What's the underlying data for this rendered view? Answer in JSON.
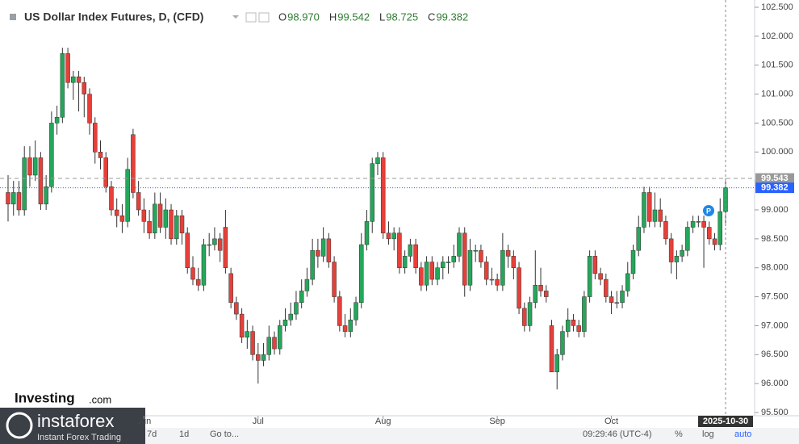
{
  "chart_data": {
    "type": "candlestick",
    "title": "US Dollar Index Futures, D, (CFD)",
    "ohlc_header": [
      {
        "label": "O",
        "value": "98.970"
      },
      {
        "label": "H",
        "value": "99.542"
      },
      {
        "label": "L",
        "value": "98.725"
      },
      {
        "label": "C",
        "value": "99.382"
      }
    ],
    "up_color": "#26a65b",
    "down_color": "#e5403a",
    "ylim": [
      95.5,
      102.5
    ],
    "yticks": [
      {
        "value": 95.5,
        "label": "95.500"
      },
      {
        "value": 96,
        "label": "96.000"
      },
      {
        "value": 96.5,
        "label": "96.500"
      },
      {
        "value": 97,
        "label": "97.000"
      },
      {
        "value": 97.5,
        "label": "97.500"
      },
      {
        "value": 98,
        "label": "98.000"
      },
      {
        "value": 98.5,
        "label": "98.500"
      },
      {
        "value": 99,
        "label": "99.000"
      },
      {
        "value": 99.5,
        "label": "99.500"
      },
      {
        "value": 100,
        "label": "100.000"
      },
      {
        "value": 100.5,
        "label": "100.500"
      },
      {
        "value": 101,
        "label": "101.000"
      },
      {
        "value": 101.5,
        "label": "101.500"
      },
      {
        "value": 102,
        "label": "102.000"
      },
      {
        "value": 102.5,
        "label": "102.500"
      }
    ],
    "xticks": [
      {
        "value": 25,
        "label": "Jun"
      },
      {
        "value": 46,
        "label": "Jul"
      },
      {
        "value": 69,
        "label": "Aug"
      },
      {
        "value": 90,
        "label": "Sep"
      },
      {
        "value": 111,
        "label": "Oct"
      }
    ],
    "cursor_date": {
      "value": 132,
      "label": "2025-10-30"
    },
    "price_lines": [
      {
        "value": 99.543,
        "label": "99.543",
        "color": "#999999"
      },
      {
        "value": 99.382,
        "label": "99.382",
        "color": "#2962ff"
      }
    ],
    "candles": [
      [
        99.3,
        99.6,
        98.8,
        99.1
      ],
      [
        99.1,
        99.5,
        98.9,
        99.3
      ],
      [
        99.3,
        99.5,
        98.9,
        99.0
      ],
      [
        99.0,
        100.1,
        98.9,
        99.9
      ],
      [
        99.9,
        100.1,
        99.4,
        99.6
      ],
      [
        99.6,
        100.2,
        99.5,
        99.9
      ],
      [
        99.9,
        100.0,
        99.0,
        99.1
      ],
      [
        99.1,
        99.6,
        99.0,
        99.4
      ],
      [
        99.4,
        100.7,
        99.3,
        100.5
      ],
      [
        100.5,
        100.8,
        100.3,
        100.6
      ],
      [
        100.6,
        101.8,
        100.5,
        101.7
      ],
      [
        101.7,
        101.8,
        101.1,
        101.2
      ],
      [
        101.2,
        101.4,
        100.9,
        101.3
      ],
      [
        101.3,
        101.4,
        100.7,
        101.2
      ],
      [
        101.2,
        101.3,
        100.6,
        101.0
      ],
      [
        101.0,
        101.1,
        100.3,
        100.5
      ],
      [
        100.5,
        100.6,
        99.8,
        100.0
      ],
      [
        100.0,
        100.2,
        99.7,
        99.9
      ],
      [
        99.9,
        100.0,
        99.3,
        99.4
      ],
      [
        99.4,
        99.5,
        98.9,
        99.0
      ],
      [
        99.0,
        99.2,
        98.7,
        98.9
      ],
      [
        98.9,
        99.1,
        98.6,
        98.8
      ],
      [
        98.8,
        99.9,
        98.7,
        99.7
      ],
      [
        100.3,
        100.4,
        99.2,
        99.3
      ],
      [
        99.3,
        99.5,
        98.9,
        99.0
      ],
      [
        99.0,
        99.2,
        98.6,
        98.8
      ],
      [
        98.8,
        99.0,
        98.5,
        98.6
      ],
      [
        98.6,
        99.3,
        98.5,
        99.1
      ],
      [
        99.1,
        99.3,
        98.6,
        98.7
      ],
      [
        98.7,
        99.2,
        98.5,
        99.0
      ],
      [
        99.0,
        99.1,
        98.4,
        98.5
      ],
      [
        98.5,
        99.0,
        98.4,
        98.9
      ],
      [
        98.9,
        99.0,
        98.4,
        98.6
      ],
      [
        98.6,
        98.7,
        97.9,
        98.0
      ],
      [
        98.0,
        98.2,
        97.7,
        97.8
      ],
      [
        97.8,
        98.0,
        97.6,
        97.7
      ],
      [
        97.7,
        98.5,
        97.6,
        98.4
      ],
      [
        98.4,
        98.6,
        98.2,
        98.4
      ],
      [
        98.4,
        98.7,
        98.3,
        98.5
      ],
      [
        98.5,
        98.6,
        98.1,
        98.3
      ],
      [
        98.7,
        99.0,
        97.9,
        98.0
      ],
      [
        97.9,
        98.0,
        97.3,
        97.4
      ],
      [
        97.4,
        97.5,
        97.1,
        97.2
      ],
      [
        97.2,
        97.3,
        96.7,
        96.8
      ],
      [
        96.8,
        97.1,
        96.6,
        96.9
      ],
      [
        96.9,
        97.0,
        96.4,
        96.5
      ],
      [
        96.5,
        96.7,
        96.0,
        96.4
      ],
      [
        96.4,
        96.7,
        96.3,
        96.5
      ],
      [
        96.5,
        97.0,
        96.4,
        96.8
      ],
      [
        96.8,
        96.9,
        96.5,
        96.6
      ],
      [
        96.6,
        97.1,
        96.5,
        97.0
      ],
      [
        97.0,
        97.3,
        96.9,
        97.1
      ],
      [
        97.1,
        97.4,
        97.0,
        97.2
      ],
      [
        97.2,
        97.6,
        97.1,
        97.4
      ],
      [
        97.4,
        97.8,
        97.3,
        97.6
      ],
      [
        97.6,
        98.0,
        97.5,
        97.8
      ],
      [
        97.8,
        98.5,
        97.7,
        98.3
      ],
      [
        98.3,
        98.5,
        98.0,
        98.2
      ],
      [
        98.2,
        98.7,
        98.1,
        98.5
      ],
      [
        98.5,
        98.6,
        98.0,
        98.1
      ],
      [
        98.1,
        98.2,
        97.4,
        97.5
      ],
      [
        97.5,
        97.6,
        96.9,
        97.0
      ],
      [
        97.0,
        97.2,
        96.8,
        96.9
      ],
      [
        96.9,
        97.3,
        96.8,
        97.1
      ],
      [
        97.1,
        97.5,
        97.0,
        97.4
      ],
      [
        97.4,
        98.6,
        97.3,
        98.4
      ],
      [
        98.4,
        99.0,
        98.3,
        98.8
      ],
      [
        98.8,
        99.9,
        98.6,
        99.8
      ],
      [
        99.8,
        100.0,
        99.6,
        99.9
      ],
      [
        99.9,
        100.0,
        98.5,
        98.6
      ],
      [
        98.6,
        98.8,
        98.4,
        98.5
      ],
      [
        98.5,
        98.7,
        98.3,
        98.6
      ],
      [
        98.6,
        98.7,
        97.9,
        98.0
      ],
      [
        98.0,
        98.3,
        97.9,
        98.2
      ],
      [
        98.2,
        98.5,
        98.1,
        98.4
      ],
      [
        98.4,
        98.5,
        97.9,
        98.0
      ],
      [
        98.0,
        98.1,
        97.6,
        97.7
      ],
      [
        97.7,
        98.2,
        97.6,
        98.1
      ],
      [
        98.1,
        98.2,
        97.7,
        97.8
      ],
      [
        97.8,
        98.1,
        97.7,
        98.0
      ],
      [
        98.0,
        98.2,
        97.8,
        98.1
      ],
      [
        98.1,
        98.2,
        97.9,
        98.1
      ],
      [
        98.1,
        98.4,
        98.0,
        98.2
      ],
      [
        98.2,
        98.7,
        98.1,
        98.6
      ],
      [
        98.6,
        98.7,
        97.5,
        97.7
      ],
      [
        97.7,
        98.5,
        97.6,
        98.3
      ],
      [
        98.3,
        98.4,
        98.1,
        98.3
      ],
      [
        98.3,
        98.4,
        98.0,
        98.1
      ],
      [
        98.1,
        98.2,
        97.7,
        97.8
      ],
      [
        97.8,
        98.0,
        97.7,
        97.8
      ],
      [
        97.8,
        97.9,
        97.6,
        97.7
      ],
      [
        97.7,
        98.6,
        97.6,
        98.3
      ],
      [
        98.3,
        98.4,
        98.0,
        98.2
      ],
      [
        98.2,
        98.3,
        97.8,
        98.0
      ],
      [
        98.0,
        98.1,
        97.2,
        97.3
      ],
      [
        97.3,
        97.4,
        96.9,
        97.0
      ],
      [
        97.0,
        97.5,
        96.9,
        97.4
      ],
      [
        97.4,
        98.3,
        97.3,
        97.7
      ],
      [
        97.7,
        98.0,
        97.5,
        97.6
      ],
      [
        97.6,
        97.7,
        97.4,
        97.5
      ],
      [
        97.0,
        97.1,
        96.2,
        96.2
      ],
      [
        96.2,
        96.6,
        95.9,
        96.5
      ],
      [
        96.5,
        97.0,
        96.4,
        96.9
      ],
      [
        96.9,
        97.3,
        96.8,
        97.1
      ],
      [
        97.1,
        97.2,
        96.9,
        97.0
      ],
      [
        97.0,
        97.1,
        96.8,
        96.9
      ],
      [
        96.9,
        97.6,
        96.8,
        97.5
      ],
      [
        97.5,
        98.3,
        97.4,
        98.2
      ],
      [
        98.2,
        98.3,
        97.8,
        97.9
      ],
      [
        97.9,
        98.0,
        97.7,
        97.8
      ],
      [
        97.8,
        97.9,
        97.4,
        97.5
      ],
      [
        97.5,
        97.6,
        97.2,
        97.4
      ],
      [
        97.4,
        97.6,
        97.3,
        97.4
      ],
      [
        97.4,
        97.7,
        97.3,
        97.6
      ],
      [
        97.6,
        98.1,
        97.5,
        97.9
      ],
      [
        97.9,
        98.4,
        97.8,
        98.3
      ],
      [
        98.3,
        98.9,
        98.2,
        98.7
      ],
      [
        98.7,
        99.4,
        98.6,
        99.3
      ],
      [
        99.3,
        99.4,
        98.7,
        98.8
      ],
      [
        98.8,
        99.3,
        98.7,
        99.0
      ],
      [
        99.0,
        99.2,
        98.7,
        98.8
      ],
      [
        98.8,
        98.9,
        98.4,
        98.5
      ],
      [
        98.5,
        98.6,
        97.9,
        98.1
      ],
      [
        98.1,
        98.3,
        97.8,
        98.2
      ],
      [
        98.2,
        98.4,
        98.1,
        98.3
      ],
      [
        98.3,
        98.8,
        98.2,
        98.7
      ],
      [
        98.7,
        98.9,
        98.6,
        98.8
      ],
      [
        98.8,
        98.9,
        98.7,
        98.8
      ],
      [
        98.8,
        98.9,
        98.0,
        98.7
      ],
      [
        98.7,
        98.8,
        98.4,
        98.5
      ],
      [
        98.5,
        98.6,
        98.3,
        98.4
      ],
      [
        98.4,
        99.2,
        98.3,
        98.97
      ],
      [
        98.97,
        99.542,
        98.725,
        99.382
      ]
    ]
  },
  "ui": {
    "watermark": "Investing",
    "watermark_suffix": ".com",
    "marker": "P",
    "toolbar": [
      "7d",
      "1d",
      "Go to..."
    ],
    "clock": "09:29:46 (UTC-4)",
    "toggles": [
      "%",
      "log",
      "auto"
    ],
    "logo": "instaforex",
    "logo_tagline": "Instant Forex Trading"
  }
}
